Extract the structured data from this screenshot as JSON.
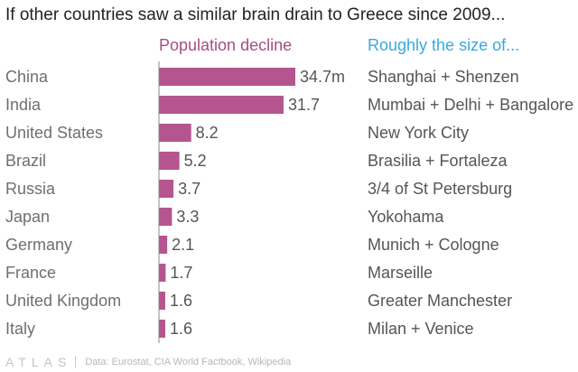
{
  "title": "If other countries saw a similar brain drain to Greece since 2009...",
  "colors": {
    "bar": "#b5558f",
    "decline_header": "#a74d86",
    "size_header": "#3aa8dc",
    "axis": "#888888"
  },
  "chart_data": {
    "type": "bar",
    "orientation": "horizontal",
    "title": "If other countries saw a similar brain drain to Greece since 2009...",
    "value_header": "Population decline",
    "annotation_header": "Roughly the size of...",
    "unit": "m",
    "xlim": [
      0,
      34.7
    ],
    "categories": [
      "China",
      "India",
      "United States",
      "Brazil",
      "Russia",
      "Japan",
      "Germany",
      "France",
      "United Kingdom",
      "Italy"
    ],
    "values": [
      34.7,
      31.7,
      8.2,
      5.2,
      3.7,
      3.3,
      2.1,
      1.7,
      1.6,
      1.6
    ],
    "value_labels": [
      "34.7m",
      "31.7",
      "8.2",
      "5.2",
      "3.7",
      "3.3",
      "2.1",
      "1.7",
      "1.6",
      "1.6"
    ],
    "annotations": [
      "Shanghai + Shenzen",
      "Mumbai + Delhi + Bangalore",
      "New York City",
      "Brasilia + Fortaleza",
      "3/4 of St Petersburg",
      "Yokohama",
      "Munich + Cologne",
      "Marseille",
      "Greater Manchester",
      "Milan + Venice"
    ]
  },
  "footer": {
    "logo": "ATLAS",
    "source": "Data: Eurostat, CIA World Factbook, Wikipedia"
  }
}
